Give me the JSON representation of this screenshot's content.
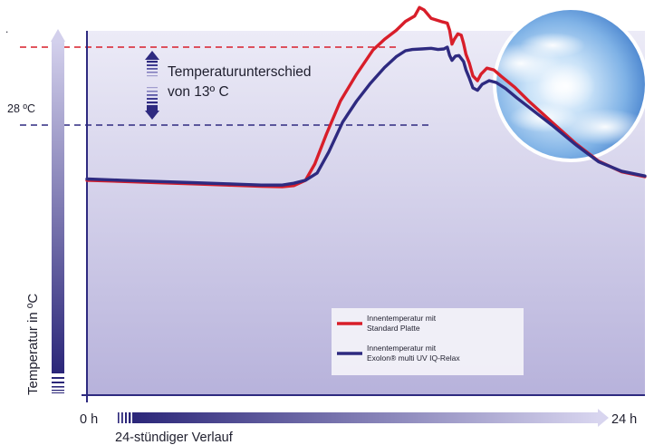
{
  "chart_data": {
    "type": "line",
    "title": "",
    "xlabel": "24-stündiger Verlauf",
    "ylabel": "Temperatur in ºC",
    "x_tick_labels": [
      "0 h",
      "24 h"
    ],
    "xlim": [
      0,
      24
    ],
    "y_reference_label": "28 ºC",
    "top_marker_label": ".",
    "annotation": {
      "line1": "Temperaturunterschied",
      "line2": "von 13º C"
    },
    "legend_position": "bottom-right",
    "series": [
      {
        "name": "Innentemperatur mit Standard Platte",
        "legend_line1": "Innentemperatur mit",
        "legend_line2": "Standard Platte",
        "color": "#d81e2a",
        "points": [
          [
            0,
            18.8
          ],
          [
            1.5,
            18.6
          ],
          [
            3,
            18.4
          ],
          [
            4.5,
            18.2
          ],
          [
            6,
            18.0
          ],
          [
            7.5,
            17.8
          ],
          [
            8.4,
            17.7
          ],
          [
            8.9,
            17.9
          ],
          [
            9.4,
            18.8
          ],
          [
            9.8,
            21.5
          ],
          [
            10.3,
            26.5
          ],
          [
            10.9,
            32.0
          ],
          [
            11.6,
            36.5
          ],
          [
            12.3,
            40.5
          ],
          [
            12.8,
            42.3
          ],
          [
            13.3,
            43.8
          ],
          [
            13.7,
            45.3
          ],
          [
            14.1,
            46.2
          ],
          [
            14.3,
            47.6
          ],
          [
            14.5,
            47.2
          ],
          [
            14.8,
            45.8
          ],
          [
            15.3,
            45.2
          ],
          [
            15.5,
            45.0
          ],
          [
            15.6,
            43.8
          ],
          [
            15.7,
            41.5
          ],
          [
            15.8,
            42.3
          ],
          [
            15.95,
            43.2
          ],
          [
            16.1,
            43.0
          ],
          [
            16.2,
            41.6
          ],
          [
            16.3,
            39.8
          ],
          [
            16.45,
            38.3
          ],
          [
            16.6,
            36.2
          ],
          [
            16.8,
            35.4
          ],
          [
            16.95,
            36.5
          ],
          [
            17.2,
            37.5
          ],
          [
            17.5,
            37.2
          ],
          [
            17.8,
            36.2
          ],
          [
            18.4,
            34.3
          ],
          [
            19.0,
            32.0
          ],
          [
            20.0,
            28.5
          ],
          [
            21.0,
            25.0
          ],
          [
            22.0,
            22.0
          ],
          [
            23.0,
            20.2
          ],
          [
            24.0,
            19.4
          ]
        ]
      },
      {
        "name": "Innentemperatur mit Exolon® multi UV IQ-Relax",
        "legend_line1": "Innentemperatur mit",
        "legend_line2": "Exolon® multi UV IQ-Relax",
        "color": "#2e2a80",
        "points": [
          [
            0,
            19.0
          ],
          [
            1.5,
            18.8
          ],
          [
            3,
            18.6
          ],
          [
            4.5,
            18.4
          ],
          [
            6,
            18.2
          ],
          [
            7.5,
            18.0
          ],
          [
            8.4,
            18.0
          ],
          [
            8.9,
            18.3
          ],
          [
            9.4,
            18.8
          ],
          [
            9.9,
            20.0
          ],
          [
            10.4,
            23.5
          ],
          [
            11.0,
            28.5
          ],
          [
            11.6,
            32.0
          ],
          [
            12.2,
            35.0
          ],
          [
            12.8,
            37.6
          ],
          [
            13.3,
            39.4
          ],
          [
            13.7,
            40.4
          ],
          [
            14.0,
            40.6
          ],
          [
            14.4,
            40.7
          ],
          [
            14.8,
            40.8
          ],
          [
            15.1,
            40.6
          ],
          [
            15.35,
            40.7
          ],
          [
            15.5,
            41.0
          ],
          [
            15.6,
            39.6
          ],
          [
            15.7,
            38.8
          ],
          [
            15.85,
            39.5
          ],
          [
            16.0,
            39.6
          ],
          [
            16.2,
            38.6
          ],
          [
            16.3,
            37.2
          ],
          [
            16.45,
            35.8
          ],
          [
            16.6,
            34.2
          ],
          [
            16.8,
            33.8
          ],
          [
            17.0,
            34.8
          ],
          [
            17.3,
            35.4
          ],
          [
            17.6,
            35.1
          ],
          [
            18.0,
            34.1
          ],
          [
            18.5,
            32.5
          ],
          [
            19.0,
            31.0
          ],
          [
            20.0,
            28.0
          ],
          [
            21.0,
            24.8
          ],
          [
            22.0,
            21.9
          ],
          [
            23.0,
            20.3
          ],
          [
            24.0,
            19.5
          ]
        ]
      }
    ]
  }
}
